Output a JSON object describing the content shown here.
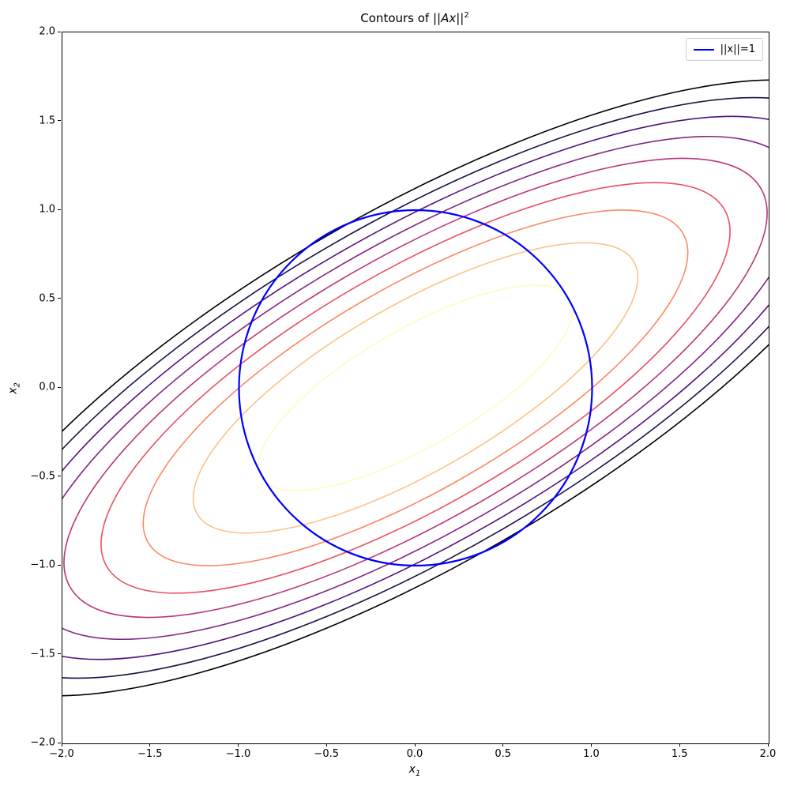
{
  "figure": {
    "title": {
      "prefix": "Contours of ||",
      "math": "Ax",
      "suffix": "||",
      "sup": "2"
    },
    "legend": {
      "label": "||x||=1",
      "line_color": "#0000ff"
    }
  },
  "chart_data": {
    "type": "contour",
    "title": "Contours of ||Ax||²",
    "xlabel": {
      "base": "x",
      "sub": "1"
    },
    "ylabel": {
      "base": "x",
      "sub": "2"
    },
    "xlim": [
      -2.0,
      2.0
    ],
    "ylim": [
      -2.0,
      2.0
    ],
    "xticks": [
      -2.0,
      -1.5,
      -1.0,
      -0.5,
      0.0,
      0.5,
      1.0,
      1.5,
      2.0
    ],
    "yticks": [
      -2.0,
      -1.5,
      -1.0,
      -0.5,
      0.0,
      0.5,
      1.0,
      1.5,
      2.0
    ],
    "grid": false,
    "legend_position": "upper right",
    "colormap": "magma reversed",
    "contours": {
      "center": [
        0,
        0
      ],
      "rotation_deg": 30,
      "num_levels": 9,
      "base_semi_major": 1.01,
      "base_semi_minor": 0.33,
      "size_scale_per_level": "sqrt(k), k=1..9",
      "colors_inner_to_outer": [
        "#fcfdbf",
        "#fec287",
        "#fb8861",
        "#e75263",
        "#b73779",
        "#822681",
        "#51127c",
        "#1d1147",
        "#000004"
      ],
      "line_width": 1.6
    },
    "overlays": [
      {
        "name": "unit-circle",
        "shape": "circle",
        "center": [
          0,
          0
        ],
        "radius": 1.0,
        "color": "#0000ff",
        "line_width": 2.2,
        "label": "||x||=1"
      }
    ]
  }
}
